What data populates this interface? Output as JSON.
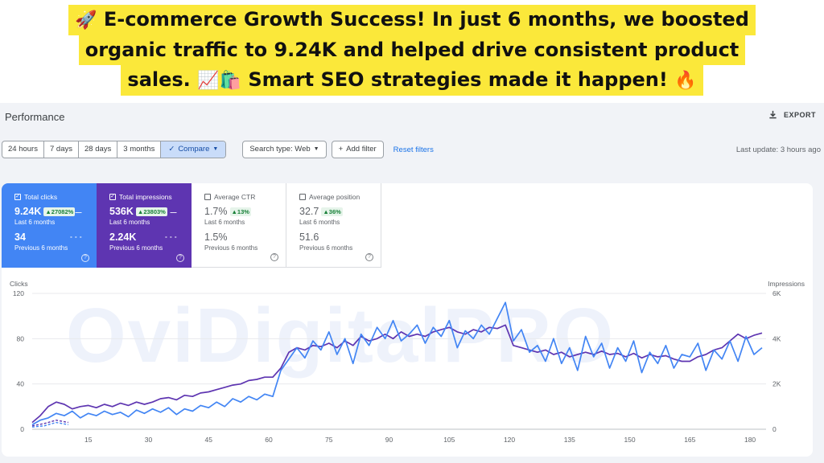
{
  "banner": {
    "line1": "E-commerce Growth Success! In just 6 months, we boosted",
    "line2": "organic traffic to 9.24K and helped drive consistent product",
    "line3_a": "sales.",
    "line3_b": "Smart SEO strategies made it happen!",
    "rocket": "🚀",
    "chart_emoji": "📈",
    "bags_emoji": "🛍️",
    "fire_emoji": "🔥"
  },
  "header": {
    "title": "Performance",
    "export_label": "EXPORT"
  },
  "toolbar": {
    "ranges": [
      "24 hours",
      "7 days",
      "28 days",
      "3 months"
    ],
    "compare_label": "Compare",
    "search_type_label": "Search type: Web",
    "add_filter_label": "Add filter",
    "reset_label": "Reset filters",
    "last_update": "Last update: 3 hours ago"
  },
  "metrics": {
    "clicks": {
      "label": "Total clicks",
      "value": "9.24K",
      "change": "▲27082%",
      "period": "Last 6 months",
      "prev_value": "34",
      "prev_period": "Previous 6 months"
    },
    "impressions": {
      "label": "Total impressions",
      "value": "536K",
      "change": "▲23803%",
      "period": "Last 6 months",
      "prev_value": "2.24K",
      "prev_period": "Previous 6 months"
    },
    "ctr": {
      "label": "Average CTR",
      "value": "1.7%",
      "change": "▲13%",
      "period": "Last 6 months",
      "prev_value": "1.5%",
      "prev_period": "Previous 6 months"
    },
    "position": {
      "label": "Average position",
      "value": "32.7",
      "change": "▲36%",
      "period": "Last 6 months",
      "prev_value": "51.6",
      "prev_period": "Previous 6 months"
    }
  },
  "watermark": "OviDigitalPRO",
  "colors": {
    "clicks": "#4285f4",
    "impressions": "#5e35b1",
    "banner": "#fbe83a"
  },
  "chart_data": {
    "type": "line",
    "left_axis_label": "Clicks",
    "right_axis_label": "Impressions",
    "left_ticks": [
      "0",
      "40",
      "80",
      "120"
    ],
    "right_ticks": [
      "0",
      "2K",
      "4K",
      "6K"
    ],
    "ylim_left": [
      0,
      120
    ],
    "ylim_right": [
      0,
      6000
    ],
    "x_ticks": [
      "15",
      "30",
      "45",
      "60",
      "75",
      "90",
      "105",
      "120",
      "135",
      "150",
      "165",
      "180"
    ],
    "xlim": [
      1,
      184
    ],
    "grid": true,
    "series": [
      {
        "axis": "left",
        "color": "#4285f4",
        "points": [
          [
            1,
            4
          ],
          [
            3,
            8
          ],
          [
            5,
            10
          ],
          [
            7,
            14
          ],
          [
            9,
            12
          ],
          [
            11,
            16
          ],
          [
            13,
            10
          ],
          [
            15,
            14
          ],
          [
            17,
            12
          ],
          [
            19,
            16
          ],
          [
            21,
            13
          ],
          [
            23,
            15
          ],
          [
            25,
            11
          ],
          [
            27,
            17
          ],
          [
            29,
            14
          ],
          [
            31,
            18
          ],
          [
            33,
            15
          ],
          [
            35,
            19
          ],
          [
            37,
            13
          ],
          [
            39,
            18
          ],
          [
            41,
            16
          ],
          [
            43,
            21
          ],
          [
            45,
            19
          ],
          [
            47,
            24
          ],
          [
            49,
            20
          ],
          [
            51,
            27
          ],
          [
            53,
            24
          ],
          [
            55,
            29
          ],
          [
            57,
            26
          ],
          [
            59,
            31
          ],
          [
            61,
            29
          ],
          [
            63,
            52
          ],
          [
            65,
            62
          ],
          [
            67,
            72
          ],
          [
            69,
            63
          ],
          [
            71,
            78
          ],
          [
            73,
            70
          ],
          [
            75,
            86
          ],
          [
            77,
            66
          ],
          [
            79,
            80
          ],
          [
            81,
            58
          ],
          [
            83,
            84
          ],
          [
            85,
            74
          ],
          [
            87,
            90
          ],
          [
            89,
            80
          ],
          [
            91,
            96
          ],
          [
            93,
            78
          ],
          [
            95,
            84
          ],
          [
            97,
            92
          ],
          [
            99,
            76
          ],
          [
            101,
            90
          ],
          [
            103,
            82
          ],
          [
            105,
            96
          ],
          [
            107,
            72
          ],
          [
            109,
            87
          ],
          [
            111,
            80
          ],
          [
            113,
            92
          ],
          [
            115,
            84
          ],
          [
            117,
            98
          ],
          [
            119,
            112
          ],
          [
            121,
            78
          ],
          [
            123,
            88
          ],
          [
            125,
            68
          ],
          [
            127,
            74
          ],
          [
            129,
            60
          ],
          [
            131,
            80
          ],
          [
            133,
            58
          ],
          [
            135,
            72
          ],
          [
            137,
            52
          ],
          [
            139,
            82
          ],
          [
            141,
            64
          ],
          [
            143,
            76
          ],
          [
            145,
            54
          ],
          [
            147,
            72
          ],
          [
            149,
            60
          ],
          [
            151,
            78
          ],
          [
            153,
            50
          ],
          [
            155,
            68
          ],
          [
            157,
            58
          ],
          [
            159,
            74
          ],
          [
            161,
            54
          ],
          [
            163,
            66
          ],
          [
            165,
            64
          ],
          [
            167,
            76
          ],
          [
            169,
            52
          ],
          [
            171,
            70
          ],
          [
            173,
            62
          ],
          [
            175,
            78
          ],
          [
            177,
            60
          ],
          [
            179,
            82
          ],
          [
            181,
            66
          ],
          [
            183,
            72
          ]
        ]
      },
      {
        "axis": "right",
        "color": "#5e35b1",
        "points": [
          [
            1,
            300
          ],
          [
            3,
            600
          ],
          [
            5,
            1000
          ],
          [
            7,
            1200
          ],
          [
            9,
            1100
          ],
          [
            11,
            900
          ],
          [
            13,
            1000
          ],
          [
            15,
            1050
          ],
          [
            17,
            950
          ],
          [
            19,
            1100
          ],
          [
            21,
            1000
          ],
          [
            23,
            1150
          ],
          [
            25,
            1050
          ],
          [
            27,
            1200
          ],
          [
            29,
            1100
          ],
          [
            31,
            1200
          ],
          [
            33,
            1350
          ],
          [
            35,
            1400
          ],
          [
            37,
            1300
          ],
          [
            39,
            1500
          ],
          [
            41,
            1450
          ],
          [
            43,
            1600
          ],
          [
            45,
            1650
          ],
          [
            47,
            1750
          ],
          [
            49,
            1850
          ],
          [
            51,
            1950
          ],
          [
            53,
            2000
          ],
          [
            55,
            2150
          ],
          [
            57,
            2200
          ],
          [
            59,
            2300
          ],
          [
            61,
            2300
          ],
          [
            63,
            2700
          ],
          [
            65,
            3400
          ],
          [
            67,
            3600
          ],
          [
            69,
            3500
          ],
          [
            71,
            3700
          ],
          [
            73,
            3650
          ],
          [
            75,
            3800
          ],
          [
            77,
            3600
          ],
          [
            79,
            3900
          ],
          [
            81,
            3700
          ],
          [
            83,
            4100
          ],
          [
            85,
            3900
          ],
          [
            87,
            4000
          ],
          [
            89,
            4200
          ],
          [
            91,
            4000
          ],
          [
            93,
            4300
          ],
          [
            95,
            4100
          ],
          [
            97,
            4200
          ],
          [
            99,
            4100
          ],
          [
            101,
            4300
          ],
          [
            103,
            4400
          ],
          [
            105,
            4500
          ],
          [
            107,
            4300
          ],
          [
            109,
            4200
          ],
          [
            111,
            4400
          ],
          [
            113,
            4300
          ],
          [
            115,
            4500
          ],
          [
            117,
            4450
          ],
          [
            119,
            4600
          ],
          [
            121,
            3700
          ],
          [
            123,
            3600
          ],
          [
            125,
            3500
          ],
          [
            127,
            3400
          ],
          [
            129,
            3500
          ],
          [
            131,
            3300
          ],
          [
            133,
            3400
          ],
          [
            135,
            3200
          ],
          [
            137,
            3300
          ],
          [
            139,
            3400
          ],
          [
            141,
            3300
          ],
          [
            143,
            3450
          ],
          [
            145,
            3300
          ],
          [
            147,
            3350
          ],
          [
            149,
            3200
          ],
          [
            151,
            3350
          ],
          [
            153,
            3150
          ],
          [
            155,
            3300
          ],
          [
            157,
            3200
          ],
          [
            159,
            3250
          ],
          [
            161,
            3100
          ],
          [
            163,
            3000
          ],
          [
            165,
            3000
          ],
          [
            167,
            3200
          ],
          [
            169,
            3300
          ],
          [
            171,
            3500
          ],
          [
            173,
            3600
          ],
          [
            175,
            3900
          ],
          [
            177,
            4200
          ],
          [
            179,
            4000
          ],
          [
            181,
            4150
          ],
          [
            183,
            4250
          ]
        ]
      }
    ]
  }
}
